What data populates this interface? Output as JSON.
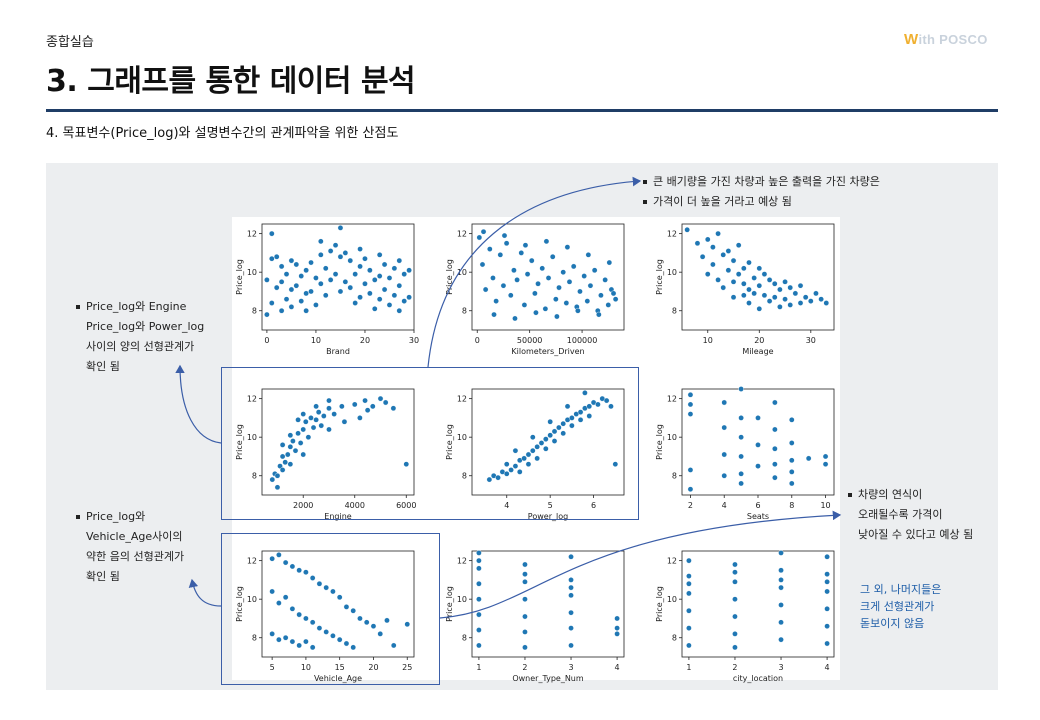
{
  "header": {
    "section_label": "종합실습",
    "logo_w": "W",
    "logo_text": "ith POSCO",
    "title": "3. 그래프를 통한 데이터 분석",
    "subtitle": "4. 목표변수(Price_log)와 설명변수간의 관계파악을 위한 산점도"
  },
  "notes": {
    "top_right": [
      "큰 배기량을 가진 차량과 높은 출력을 가진 차량은",
      "가격이 더 높을 거라고 예상 됨"
    ],
    "left_upper": [
      "Price_log와  Engine",
      "Price_log와  Power_log",
      "사이의  양의 선형관계가",
      "확인 됨"
    ],
    "left_lower": [
      "Price_log와",
      "Vehicle_Age사이의",
      "약한 음의 선형관계가",
      "확인 됨"
    ],
    "right_middle": [
      "차량의 연식이",
      "오래될수록  가격이",
      "낮아질 수 있다고 예상 됨"
    ],
    "right_blue": [
      "그 외, 나머지들은",
      "크게 선형관계가",
      "돋보이지 않음"
    ]
  },
  "colors": {
    "marker": "#1f77b4",
    "frame": "#3b5ea8",
    "title_rule": "#1f3d66"
  },
  "chart_data": [
    {
      "type": "scatter",
      "xlabel": "Brand",
      "ylabel": "Price_log",
      "xlim": [
        -1,
        30
      ],
      "ylim": [
        7,
        12.5
      ],
      "xticks": [
        0,
        10,
        20,
        30
      ],
      "yticks": [
        8,
        10,
        12
      ],
      "x": [
        0,
        0,
        1,
        1,
        1,
        2,
        2,
        3,
        3,
        3,
        4,
        4,
        5,
        5,
        5,
        6,
        6,
        7,
        7,
        8,
        8,
        8,
        9,
        9,
        10,
        10,
        11,
        11,
        11,
        12,
        12,
        13,
        13,
        14,
        14,
        15,
        15,
        15,
        16,
        16,
        17,
        17,
        18,
        18,
        19,
        19,
        19,
        20,
        20,
        21,
        21,
        22,
        22,
        23,
        23,
        23,
        24,
        24,
        25,
        25,
        26,
        26,
        27,
        27,
        27,
        28,
        28,
        29,
        29
      ],
      "y": [
        7.8,
        9.6,
        8.4,
        10.7,
        12.0,
        9.2,
        10.8,
        8.0,
        9.5,
        10.3,
        8.6,
        9.9,
        8.2,
        9.1,
        10.6,
        9.3,
        10.4,
        8.5,
        9.8,
        8.0,
        8.9,
        10.1,
        9.0,
        10.5,
        8.3,
        9.7,
        9.4,
        10.9,
        11.6,
        8.8,
        10.2,
        9.6,
        11.1,
        9.9,
        11.4,
        9.0,
        10.8,
        12.3,
        9.5,
        11.0,
        9.2,
        10.6,
        8.4,
        9.9,
        8.7,
        10.3,
        11.2,
        9.4,
        10.7,
        8.9,
        10.1,
        8.1,
        9.6,
        8.6,
        9.8,
        10.9,
        9.1,
        10.4,
        8.3,
        9.7,
        8.8,
        10.2,
        8.0,
        9.3,
        10.6,
        8.5,
        9.9,
        8.7,
        10.1
      ]
    },
    {
      "type": "scatter",
      "xlabel": "Kilometers_Driven",
      "ylabel": "Price_log",
      "xlim": [
        -5000,
        140000
      ],
      "ylim": [
        7,
        12.5
      ],
      "xticks": [
        0,
        50000,
        100000
      ],
      "yticks": [
        8,
        10,
        12
      ],
      "x": [
        2000,
        5000,
        8000,
        12000,
        15000,
        18000,
        22000,
        25000,
        28000,
        32000,
        35000,
        38000,
        42000,
        45000,
        48000,
        52000,
        55000,
        58000,
        62000,
        65000,
        68000,
        72000,
        75000,
        78000,
        82000,
        85000,
        88000,
        92000,
        95000,
        98000,
        102000,
        105000,
        108000,
        112000,
        115000,
        118000,
        122000,
        125000,
        128000,
        132000,
        6000,
        26000,
        46000,
        66000,
        86000,
        106000,
        126000,
        16000,
        36000,
        56000,
        76000,
        96000,
        116000,
        130000
      ],
      "y": [
        11.8,
        10.4,
        9.1,
        11.2,
        9.7,
        8.5,
        10.9,
        9.3,
        11.5,
        8.8,
        10.1,
        9.6,
        11.0,
        8.3,
        9.9,
        10.6,
        8.9,
        9.4,
        10.2,
        8.1,
        9.7,
        10.8,
        8.6,
        9.2,
        10.0,
        8.4,
        9.5,
        10.3,
        8.2,
        9.0,
        9.8,
        8.5,
        9.3,
        10.1,
        8.0,
        8.8,
        9.6,
        8.3,
        9.1,
        8.6,
        12.1,
        11.9,
        11.4,
        11.6,
        11.3,
        10.9,
        10.5,
        7.8,
        7.6,
        7.9,
        7.7,
        8.0,
        7.8,
        8.9
      ]
    },
    {
      "type": "scatter",
      "xlabel": "Mileage",
      "ylabel": "Price_log",
      "xlim": [
        5,
        34.5
      ],
      "ylim": [
        7,
        12.5
      ],
      "xticks": [
        10,
        20,
        30
      ],
      "yticks": [
        8,
        10,
        12
      ],
      "x": [
        6,
        8,
        9,
        10,
        10,
        11,
        11,
        12,
        12,
        13,
        13,
        14,
        14,
        15,
        15,
        15,
        16,
        16,
        17,
        17,
        17,
        18,
        18,
        18,
        19,
        19,
        20,
        20,
        20,
        21,
        21,
        22,
        22,
        23,
        23,
        24,
        24,
        25,
        25,
        26,
        26,
        27,
        28,
        28,
        29,
        30,
        31,
        32,
        33
      ],
      "y": [
        12.2,
        11.5,
        10.8,
        11.7,
        9.9,
        10.4,
        11.3,
        9.6,
        12.0,
        10.9,
        9.2,
        10.1,
        11.1,
        9.5,
        10.6,
        8.7,
        9.9,
        11.4,
        8.8,
        10.2,
        9.4,
        9.1,
        10.5,
        8.4,
        9.7,
        8.9,
        9.3,
        10.2,
        8.1,
        8.8,
        9.9,
        8.5,
        9.6,
        8.7,
        9.4,
        8.2,
        9.1,
        8.6,
        9.5,
        8.3,
        9.2,
        8.9,
        8.4,
        9.3,
        8.7,
        8.5,
        8.9,
        8.6,
        8.4
      ]
    },
    {
      "type": "scatter",
      "xlabel": "Engine",
      "ylabel": "Price_log",
      "xlim": [
        400,
        6300
      ],
      "ylim": [
        7,
        12.5
      ],
      "xticks": [
        2000,
        4000,
        6000
      ],
      "yticks": [
        8,
        10,
        12
      ],
      "x": [
        800,
        900,
        1000,
        1100,
        1200,
        1200,
        1300,
        1400,
        1500,
        1500,
        1600,
        1700,
        1800,
        1900,
        2000,
        2000,
        2100,
        2200,
        2300,
        2400,
        2500,
        2600,
        2700,
        2800,
        3000,
        3000,
        3200,
        3500,
        3600,
        4000,
        4200,
        4400,
        4500,
        4700,
        5000,
        5200,
        5500,
        6000,
        1200,
        1500,
        2000,
        2500,
        3000,
        1000,
        1800
      ],
      "y": [
        7.8,
        8.1,
        8.0,
        8.5,
        8.3,
        9.0,
        8.7,
        9.1,
        9.5,
        8.6,
        9.8,
        9.3,
        10.2,
        9.7,
        10.4,
        9.1,
        10.8,
        10.0,
        11.0,
        10.5,
        10.9,
        11.3,
        10.6,
        11.1,
        11.5,
        10.4,
        11.2,
        11.6,
        10.8,
        11.7,
        11.0,
        11.9,
        11.4,
        11.6,
        12.0,
        11.8,
        11.5,
        8.6,
        9.6,
        10.1,
        11.2,
        11.6,
        11.9,
        7.4,
        10.9
      ]
    },
    {
      "type": "scatter",
      "xlabel": "Power_log",
      "ylabel": "Price_log",
      "xlim": [
        3.2,
        6.7
      ],
      "ylim": [
        7,
        12.5
      ],
      "xticks": [
        4,
        5,
        6
      ],
      "yticks": [
        8,
        10,
        12
      ],
      "x": [
        3.6,
        3.7,
        3.8,
        3.9,
        4.0,
        4.0,
        4.1,
        4.2,
        4.3,
        4.3,
        4.4,
        4.5,
        4.5,
        4.6,
        4.7,
        4.7,
        4.8,
        4.9,
        4.9,
        5.0,
        5.1,
        5.1,
        5.2,
        5.3,
        5.3,
        5.4,
        5.5,
        5.5,
        5.6,
        5.7,
        5.7,
        5.8,
        5.9,
        5.9,
        6.0,
        6.1,
        6.2,
        6.3,
        6.4,
        6.5,
        4.2,
        4.6,
        5.0,
        5.4,
        5.8
      ],
      "y": [
        7.8,
        8.0,
        7.9,
        8.2,
        8.1,
        8.6,
        8.3,
        8.5,
        8.8,
        8.2,
        8.9,
        9.1,
        8.6,
        9.3,
        9.5,
        8.9,
        9.7,
        9.9,
        9.4,
        10.1,
        10.3,
        9.8,
        10.5,
        10.7,
        10.2,
        10.9,
        11.0,
        10.6,
        11.2,
        11.3,
        10.9,
        11.5,
        11.6,
        11.1,
        11.8,
        11.7,
        12.0,
        11.9,
        11.6,
        8.6,
        9.3,
        10.0,
        10.8,
        11.6,
        12.3
      ]
    },
    {
      "type": "scatter",
      "xlabel": "Seats",
      "ylabel": "Price_log",
      "xlim": [
        1.5,
        10.5
      ],
      "ylim": [
        7,
        12.5
      ],
      "xticks": [
        2,
        4,
        6,
        8,
        10
      ],
      "yticks": [
        8,
        10,
        12
      ],
      "x": [
        2,
        2,
        2,
        2,
        2,
        4,
        4,
        4,
        4,
        5,
        5,
        5,
        5,
        5,
        5,
        6,
        6,
        6,
        7,
        7,
        7,
        7,
        7,
        8,
        8,
        8,
        8,
        8,
        9,
        10,
        10
      ],
      "y": [
        12.2,
        11.7,
        11.2,
        8.3,
        7.3,
        11.8,
        10.5,
        9.1,
        8.0,
        12.5,
        11.0,
        10.0,
        9.0,
        8.1,
        7.6,
        11.0,
        9.6,
        8.5,
        11.8,
        10.4,
        9.4,
        8.6,
        7.9,
        10.9,
        9.7,
        8.8,
        8.2,
        7.6,
        8.9,
        9.0,
        8.6
      ]
    },
    {
      "type": "scatter",
      "xlabel": "Vehicle_Age",
      "ylabel": "Price_log",
      "xlim": [
        3.5,
        26
      ],
      "ylim": [
        7,
        12.5
      ],
      "xticks": [
        5,
        10,
        15,
        20,
        25
      ],
      "yticks": [
        8,
        10,
        12
      ],
      "x": [
        5,
        5,
        5,
        6,
        6,
        6,
        7,
        7,
        7,
        8,
        8,
        8,
        9,
        9,
        9,
        10,
        10,
        10,
        11,
        11,
        11,
        12,
        12,
        13,
        13,
        14,
        14,
        15,
        15,
        16,
        16,
        17,
        17,
        18,
        19,
        20,
        21,
        22,
        23,
        25
      ],
      "y": [
        12.1,
        10.4,
        8.2,
        12.3,
        9.8,
        7.9,
        11.9,
        10.1,
        8.0,
        11.7,
        9.5,
        7.8,
        11.5,
        9.2,
        7.6,
        11.4,
        9.0,
        7.8,
        11.1,
        8.8,
        7.5,
        10.8,
        8.5,
        10.6,
        8.3,
        10.4,
        8.1,
        10.1,
        7.9,
        9.6,
        7.7,
        9.4,
        7.5,
        9.0,
        8.8,
        8.6,
        8.2,
        8.9,
        7.6,
        8.7
      ]
    },
    {
      "type": "scatter",
      "xlabel": "Owner_Type_Num",
      "ylabel": "Price_log",
      "xlim": [
        0.85,
        4.15
      ],
      "ylim": [
        7,
        12.5
      ],
      "xticks": [
        1,
        2,
        3,
        4
      ],
      "yticks": [
        8,
        10,
        12
      ],
      "x": [
        1,
        1,
        1,
        1,
        1,
        1,
        1,
        1,
        2,
        2,
        2,
        2,
        2,
        2,
        2,
        3,
        3,
        3,
        3,
        3,
        3,
        3,
        4,
        4,
        4
      ],
      "y": [
        12.4,
        11.6,
        10.8,
        10.0,
        9.2,
        8.4,
        7.6,
        12.0,
        11.8,
        10.9,
        10.0,
        9.1,
        8.3,
        7.5,
        11.3,
        12.2,
        11.0,
        10.2,
        9.3,
        8.5,
        7.6,
        10.6,
        9.0,
        8.5,
        8.2
      ]
    },
    {
      "type": "scatter",
      "xlabel": "city_location",
      "ylabel": "Price_log",
      "xlim": [
        0.85,
        4.15
      ],
      "ylim": [
        7,
        12.5
      ],
      "xticks": [
        1,
        2,
        3,
        4
      ],
      "yticks": [
        8,
        10,
        12
      ],
      "x": [
        1,
        1,
        1,
        1,
        1,
        1,
        1,
        2,
        2,
        2,
        2,
        2,
        2,
        2,
        3,
        3,
        3,
        3,
        3,
        3,
        3,
        4,
        4,
        4,
        4,
        4,
        4,
        4
      ],
      "y": [
        12.0,
        11.2,
        10.3,
        9.4,
        8.5,
        7.6,
        10.8,
        11.8,
        10.9,
        10.0,
        9.1,
        8.2,
        7.5,
        11.4,
        12.4,
        11.5,
        10.6,
        9.7,
        8.8,
        7.9,
        11.0,
        12.2,
        11.3,
        10.4,
        9.5,
        8.6,
        7.7,
        10.9
      ]
    }
  ]
}
